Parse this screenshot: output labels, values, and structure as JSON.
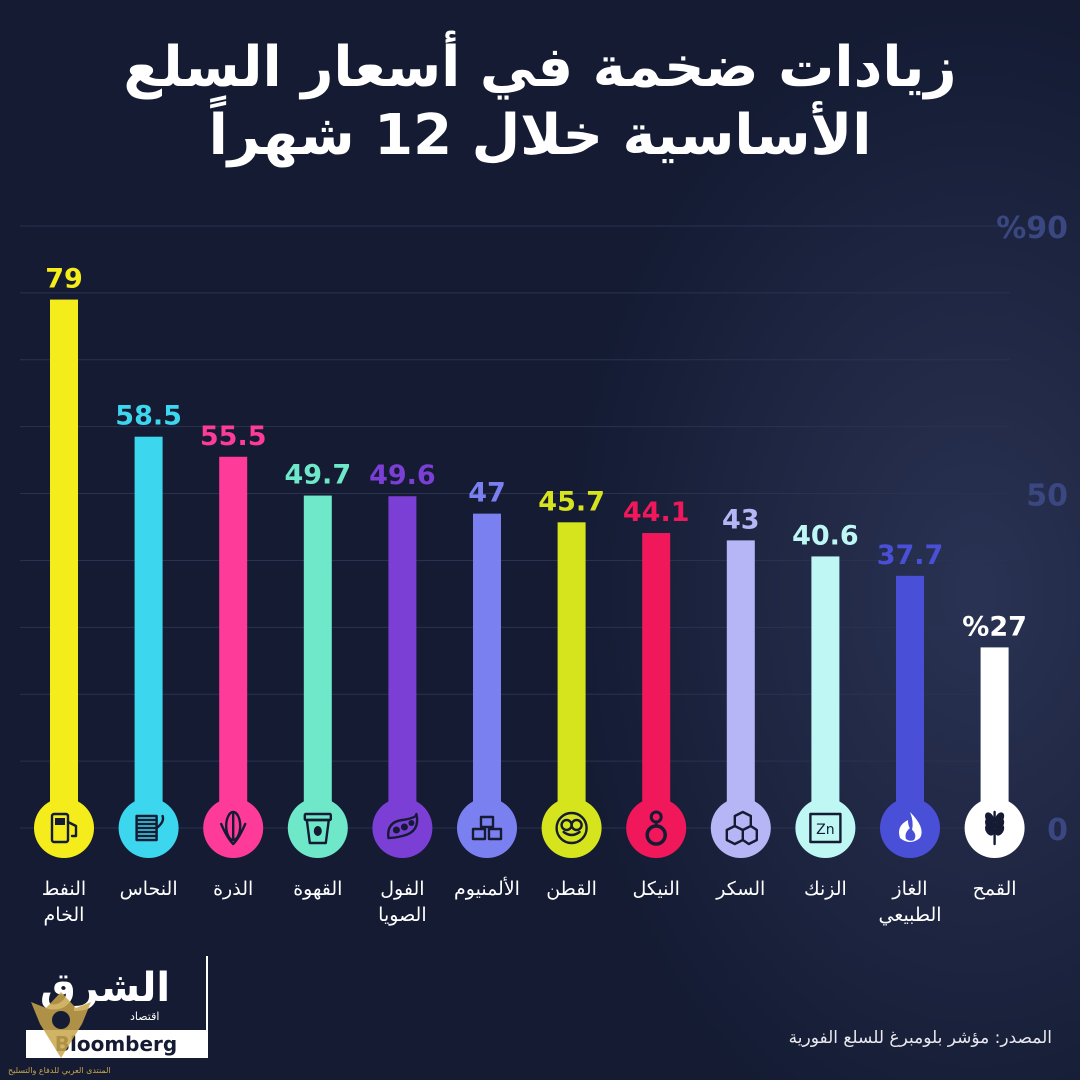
{
  "title_lines": [
    "زيادات ضخمة في أسعار السلع",
    "الأساسية خلال 12 شهراً"
  ],
  "source": "المصدر: مؤشر بلومبرغ للسلع الفورية",
  "logo": {
    "main": "الشرق",
    "sub": "اقتصاد",
    "partner": "Bloomberg",
    "with": "مع",
    "watermark": "المنتدى العربي للدفاع والتسليح"
  },
  "colors": {
    "background": "#141b33",
    "grid": "#2a3252",
    "axis_text": "#3b4780"
  },
  "chart_data": {
    "type": "bar",
    "title": "زيادات ضخمة في أسعار السلع الأساسية خلال 12 شهراً",
    "ylim": [
      0,
      90
    ],
    "yticks": [
      {
        "value": 0,
        "label": "0"
      },
      {
        "value": 50,
        "label": "50"
      },
      {
        "value": 90,
        "label": "%90"
      }
    ],
    "grid": true,
    "categories": [
      {
        "label": [
          "النفط",
          "الخام"
        ],
        "value": 79,
        "value_label": "79",
        "color": "#f5ec1b",
        "icon": "fuel-pump-icon"
      },
      {
        "label": [
          "النحاس"
        ],
        "value": 58.5,
        "value_label": "58.5",
        "color": "#3dd6ef",
        "icon": "copper-spool-icon"
      },
      {
        "label": [
          "الذرة"
        ],
        "value": 55.5,
        "value_label": "55.5",
        "color": "#ff3b9a",
        "icon": "corn-icon"
      },
      {
        "label": [
          "القهوة"
        ],
        "value": 49.7,
        "value_label": "49.7",
        "color": "#6fe8c9",
        "icon": "coffee-cup-icon"
      },
      {
        "label": [
          "الفول",
          "الصويا"
        ],
        "value": 49.6,
        "value_label": "49.6",
        "color": "#7b3fd6",
        "icon": "soybean-icon"
      },
      {
        "label": [
          "الألمنيوم"
        ],
        "value": 47,
        "value_label": "47",
        "color": "#7a80f0",
        "icon": "aluminium-bars-icon"
      },
      {
        "label": [
          "القطن"
        ],
        "value": 45.7,
        "value_label": "45.7",
        "color": "#d6e41e",
        "icon": "cotton-icon"
      },
      {
        "label": [
          "النيكل"
        ],
        "value": 44.1,
        "value_label": "44.1",
        "color": "#f0185a",
        "icon": "nickel-icon"
      },
      {
        "label": [
          "السكر"
        ],
        "value": 43,
        "value_label": "43",
        "color": "#b6b6f7",
        "icon": "sugar-cubes-icon"
      },
      {
        "label": [
          "الزنك"
        ],
        "value": 40.6,
        "value_label": "40.6",
        "color": "#bff7f4",
        "icon": "zinc-icon"
      },
      {
        "label": [
          "الغاز",
          "الطبيعي"
        ],
        "value": 37.7,
        "value_label": "37.7",
        "color": "#4a4fd8",
        "icon": "flame-icon"
      },
      {
        "label": [
          "القمح"
        ],
        "value": 27,
        "value_label": "%27",
        "color": "#ffffff",
        "icon": "wheat-icon"
      }
    ]
  }
}
